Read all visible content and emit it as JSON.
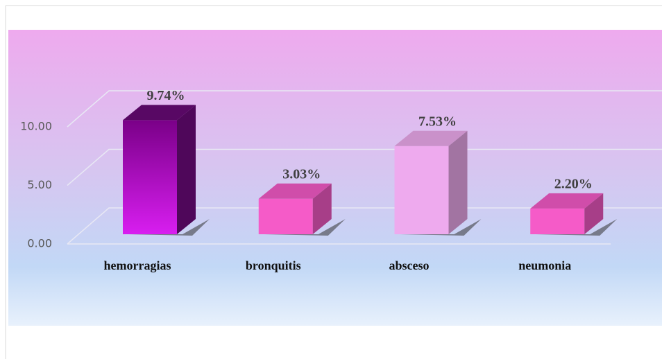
{
  "chart_data": {
    "type": "bar3d",
    "categories": [
      "hemorragias",
      "bronquitis",
      "absceso",
      "neumonia"
    ],
    "values": [
      9.74,
      3.03,
      7.53,
      2.2
    ],
    "value_labels": [
      "9.74%",
      "3.03%",
      "7.53%",
      "2.20%"
    ],
    "colors": [
      "#b010c8",
      "#f55bc8",
      "#eeaaee",
      "#f55bc8"
    ],
    "ylim": [
      0,
      10
    ],
    "yticks": [
      {
        "value": 0,
        "label": "0.00"
      },
      {
        "value": 5,
        "label": "5.00"
      },
      {
        "value": 10,
        "label": "10.00"
      }
    ],
    "grid": true
  }
}
